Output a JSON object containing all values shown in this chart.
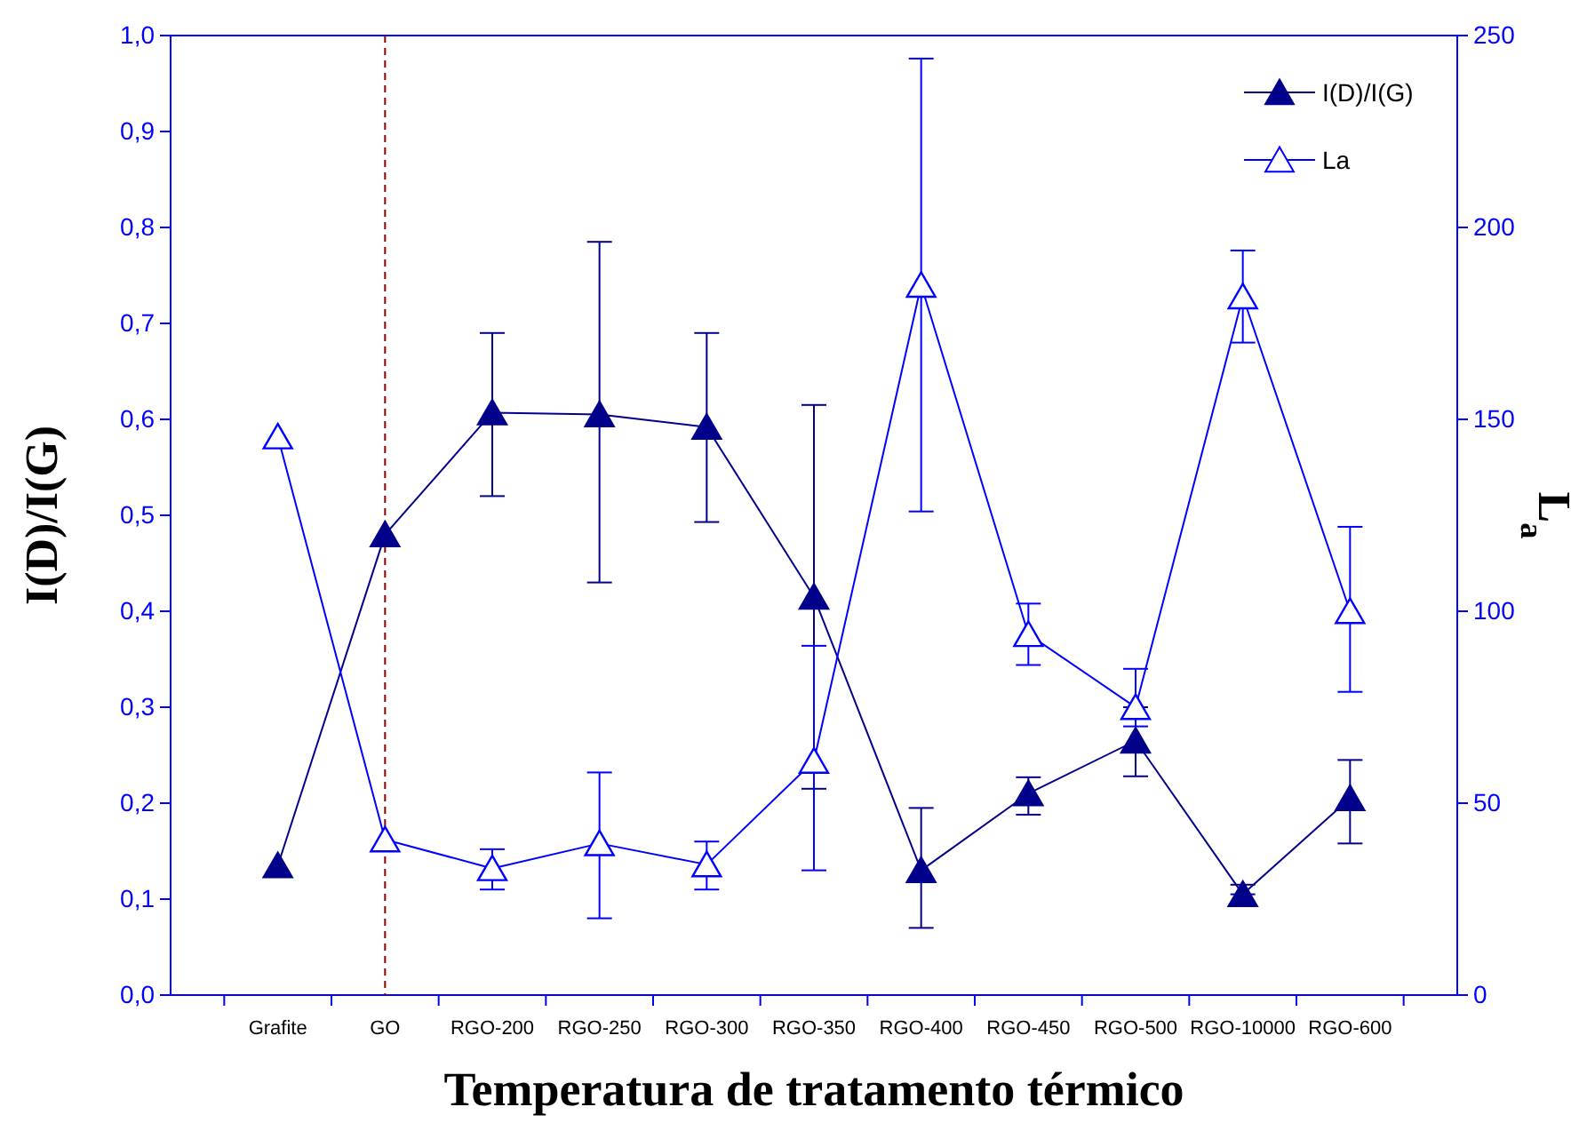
{
  "chart_data": {
    "type": "line",
    "xlabel": "Temperatura de tratamento térmico",
    "ylabel": "I(D)/I(G)",
    "y2label": "L$_{a}$",
    "categories": [
      "Grafite",
      "GO",
      "RGO-200",
      "RGO-250",
      "RGO-300",
      "RGO-350",
      "RGO-400",
      "RGO-450",
      "RGO-500",
      "RGO-10000",
      "RGO-600"
    ],
    "series": [
      {
        "name": "I(D)/I(G)",
        "color": "#00008b",
        "marker": "triangle",
        "values": [
          0.135,
          0.48,
          0.607,
          0.605,
          0.592,
          0.415,
          0.13,
          0.21,
          0.265,
          0.105,
          0.205
        ],
        "errors": [
          null,
          null,
          [
            0.52,
            0.69
          ],
          [
            0.43,
            0.785
          ],
          [
            0.493,
            0.69
          ],
          [
            0.215,
            0.615
          ],
          [
            0.07,
            0.195
          ],
          [
            0.188,
            0.227
          ],
          [
            0.228,
            0.3
          ],
          [
            0.105,
            0.115
          ],
          [
            0.158,
            0.245
          ]
        ]
      },
      {
        "name": "La",
        "color": "#0000ff",
        "marker": "triangle",
        "axis": "y2",
        "values": [
          145.5,
          40.5,
          33,
          39.5,
          34,
          61,
          185,
          94,
          75,
          182,
          100
        ],
        "errors": [
          null,
          null,
          [
            27.5,
            38
          ],
          [
            20,
            58
          ],
          [
            27.5,
            40
          ],
          [
            32.5,
            91
          ],
          [
            126,
            244
          ],
          [
            86,
            102
          ],
          [
            70,
            85
          ],
          [
            170,
            194
          ],
          [
            79,
            122
          ]
        ]
      }
    ],
    "ylim": [
      0,
      1
    ],
    "yticks": [
      {
        "value": 0,
        "label": "0,0"
      },
      {
        "value": 0.1,
        "label": "0,1"
      },
      {
        "value": 0.2,
        "label": "0,2"
      },
      {
        "value": 0.3,
        "label": "0,3"
      },
      {
        "value": 0.4,
        "label": "0,4"
      },
      {
        "value": 0.5,
        "label": "0,5"
      },
      {
        "value": 0.6,
        "label": "0,6"
      },
      {
        "value": 0.7,
        "label": "0,7"
      },
      {
        "value": 0.8,
        "label": "0,8"
      },
      {
        "value": 0.9,
        "label": "0,9"
      },
      {
        "value": 1,
        "label": "1,0"
      }
    ],
    "y2lim": [
      0,
      250
    ],
    "y2ticks": [
      0,
      50,
      100,
      150,
      200,
      250
    ],
    "ref_lines": [
      {
        "axis": "x",
        "value": "GO",
        "color": "#8b0000",
        "line_style": "dashed"
      }
    ],
    "legend": "top right",
    "grid": false,
    "line_style": "solid"
  }
}
